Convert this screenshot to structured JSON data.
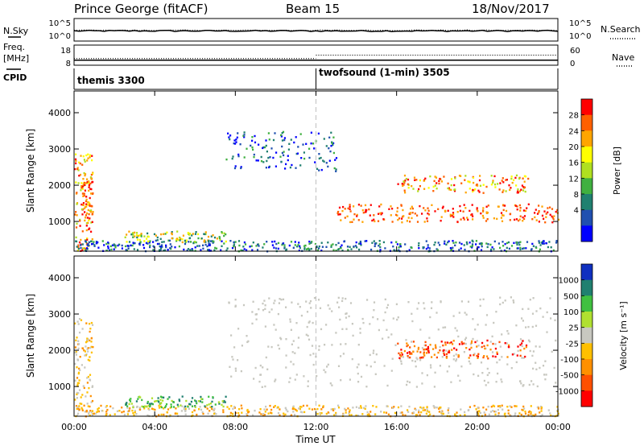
{
  "header": {
    "station": "Prince George (fitACF)",
    "beam": "Beam 15",
    "date": "18/Nov/2017"
  },
  "panel_labels": {
    "nsky": "N.Sky",
    "nsearch": "N.Search",
    "freq": "Freq.",
    "freq_unit": "[MHz]",
    "nave": "Nave",
    "cpid": "CPID"
  },
  "noise_panel": {
    "left_ticks": [
      "10^5",
      "10^0"
    ],
    "right_ticks": [
      "10^5",
      "10^0"
    ],
    "sky_level": 0.45,
    "search_level": 0.48
  },
  "freq_panel": {
    "left_ticks": [
      "18",
      "8"
    ],
    "right_ticks": [
      "60",
      "0"
    ],
    "freq_level_mhz": 10.5,
    "nave_segments": [
      {
        "start_h": 0,
        "end_h": 12,
        "value": 20
      },
      {
        "start_h": 12,
        "end_h": 24,
        "value": 30
      }
    ]
  },
  "cpid": [
    {
      "label": "themis 3300",
      "start_h": 0
    },
    {
      "label": "twofsound (1-min) 3505",
      "start_h": 12
    }
  ],
  "chart_data": [
    {
      "type": "heatmap",
      "name": "power",
      "ylabel": "Slant Range [km]",
      "yticks": [
        1000,
        2000,
        3000,
        4000
      ],
      "ylim": [
        180,
        4600
      ],
      "xlim": [
        0,
        24
      ],
      "colorbar": {
        "label": "Power [dB]",
        "ticks": [
          "28",
          "24",
          "20",
          "16",
          "12",
          "8",
          "4"
        ],
        "colors": [
          "#ff0000",
          "#ff6000",
          "#ffa500",
          "#ffff00",
          "#b0e020",
          "#40b040",
          "#208070",
          "#2050b0",
          "#0000ff"
        ]
      },
      "regions": [
        {
          "t0": 0.0,
          "t1": 0.9,
          "r0": 200,
          "r1": 2900,
          "level": "high"
        },
        {
          "t0": 0.3,
          "t1": 0.9,
          "r0": 1100,
          "r1": 2200,
          "level": "max"
        },
        {
          "t0": 0.0,
          "t1": 24.0,
          "r0": 200,
          "r1": 500,
          "level": "low"
        },
        {
          "t0": 2.5,
          "t1": 7.5,
          "r0": 450,
          "r1": 750,
          "level": "mid"
        },
        {
          "t0": 7.5,
          "t1": 13.0,
          "r0": 2400,
          "r1": 3500,
          "level": "low"
        },
        {
          "t0": 13.0,
          "t1": 24.0,
          "r0": 1000,
          "r1": 1500,
          "level": "max"
        },
        {
          "t0": 16.0,
          "t1": 22.5,
          "r0": 1800,
          "r1": 2300,
          "level": "high"
        }
      ]
    },
    {
      "type": "heatmap",
      "name": "velocity",
      "ylabel": "Slant Range [km]",
      "yticks": [
        1000,
        2000,
        3000,
        4000
      ],
      "ylim": [
        180,
        4600
      ],
      "xlim": [
        0,
        24
      ],
      "colorbar": {
        "label": "Velocity [m s⁻¹]",
        "ticks": [
          "1000",
          "500",
          "100",
          "25",
          "-25",
          "-100",
          "-500",
          "-1000"
        ],
        "colors": [
          "#1030c0",
          "#208070",
          "#40c040",
          "#b0e030",
          "#c8c8c0",
          "#ffc000",
          "#ff9000",
          "#ff5000",
          "#ff0000"
        ]
      },
      "regions": [
        {
          "t0": 0.0,
          "t1": 0.9,
          "r0": 200,
          "r1": 2900,
          "level": "negative"
        },
        {
          "t0": 0.0,
          "t1": 24.0,
          "r0": 200,
          "r1": 500,
          "level": "negative"
        },
        {
          "t0": 2.5,
          "t1": 7.5,
          "r0": 450,
          "r1": 750,
          "level": "positive"
        },
        {
          "t0": 7.5,
          "t1": 24.0,
          "r0": 1000,
          "r1": 3500,
          "level": "ground"
        },
        {
          "t0": 16.0,
          "t1": 22.5,
          "r0": 1800,
          "r1": 2300,
          "level": "negative_strong"
        }
      ]
    }
  ],
  "xaxis": {
    "label": "Time UT",
    "ticks": [
      "00:00",
      "04:00",
      "08:00",
      "12:00",
      "16:00",
      "20:00",
      "00:00"
    ]
  }
}
